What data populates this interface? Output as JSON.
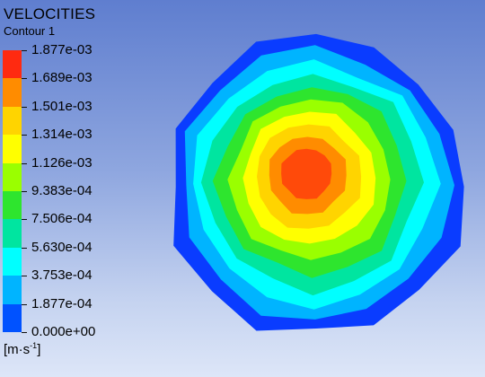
{
  "header": {
    "title": "VELOCITIES",
    "subtitle": "Contour 1"
  },
  "legend": {
    "labels": [
      "1.877e-03",
      "1.689e-03",
      "1.501e-03",
      "1.314e-03",
      "1.126e-03",
      "9.383e-04",
      "7.506e-04",
      "5.630e-04",
      "3.753e-04",
      "1.877e-04",
      "0.000e+00"
    ],
    "colors": [
      "#ff2a10",
      "#ff8c00",
      "#ffd400",
      "#ffff00",
      "#9aff00",
      "#2ee52e",
      "#00e5a0",
      "#00ffff",
      "#00b4ff",
      "#0052ff"
    ],
    "units_base": "[m·s",
    "units_exp": "-1",
    "units_close": "]"
  },
  "plot": {
    "contour_colors_outer_to_inner": [
      "#0a3cff",
      "#00b4ff",
      "#00ffff",
      "#00e5a0",
      "#2ee52e",
      "#9aff00",
      "#ffff00",
      "#ffd400",
      "#ff8c00",
      "#ff4a0a"
    ]
  }
}
